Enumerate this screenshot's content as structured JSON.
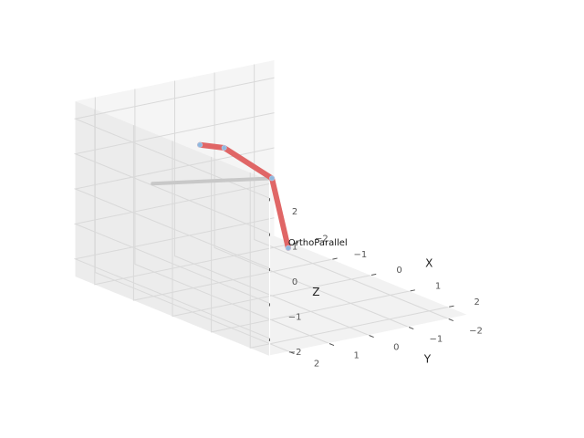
{
  "chart_data": {
    "type": "line",
    "projection": "3d",
    "title": "",
    "xlabel": "X",
    "ylabel": "Y",
    "zlabel": "Z",
    "xlim": [
      -2.5,
      2.5
    ],
    "ylim": [
      -2.5,
      2.5
    ],
    "zlim": [
      -2.5,
      2.5
    ],
    "grid": true,
    "xticks": [
      {
        "value": -2,
        "label": "−2"
      },
      {
        "value": -1,
        "label": "−1"
      },
      {
        "value": 0,
        "label": "0"
      },
      {
        "value": 1,
        "label": "1"
      },
      {
        "value": 2,
        "label": "2"
      }
    ],
    "yticks": [
      {
        "value": -2,
        "label": "−2"
      },
      {
        "value": -1,
        "label": "−1"
      },
      {
        "value": 0,
        "label": "0"
      },
      {
        "value": 1,
        "label": "1"
      },
      {
        "value": 2,
        "label": "2"
      }
    ],
    "zticks": [
      {
        "value": -2,
        "label": "−2"
      },
      {
        "value": -1,
        "label": "−1"
      },
      {
        "value": 0,
        "label": "0"
      },
      {
        "value": 1,
        "label": "1"
      },
      {
        "value": 2,
        "label": "2"
      }
    ],
    "series": [
      {
        "role": "robot-links",
        "color": "#e06666",
        "points": [
          {
            "x": 0.42,
            "y": 0.0,
            "z": -0.95
          },
          {
            "x": 0.0,
            "y": 0.0,
            "z": 0.85
          },
          {
            "x": 0.0,
            "y": 1.2,
            "z": 2.0
          },
          {
            "x": 0.4,
            "y": 2.2,
            "z": 2.5
          }
        ]
      },
      {
        "role": "reference-segment",
        "color": "#c8c8c8",
        "points": [
          {
            "x": 0.0,
            "y": 0.0,
            "z": 0.85
          },
          {
            "x": 0.0,
            "y": 3.0,
            "z": 1.4
          }
        ]
      }
    ],
    "joint_color": "#8fb8de",
    "annotations": [
      {
        "text": "OrthoParallel",
        "x": 0.42,
        "y": 0.0,
        "z": -0.95
      }
    ]
  }
}
